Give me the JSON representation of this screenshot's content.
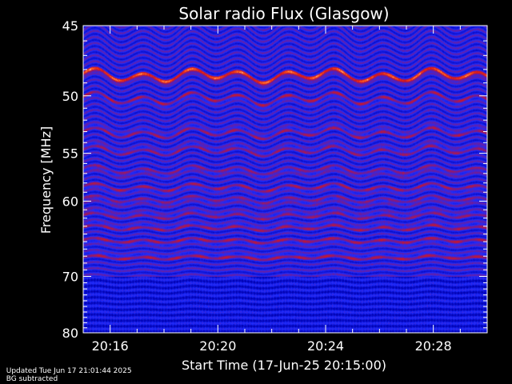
{
  "chart_data": {
    "type": "heatmap",
    "title": "Solar radio Flux (Glasgow)",
    "ylabel": "Frequency [MHz]",
    "xlabel": "Start Time (17-Jun-25 20:15:00)",
    "y_scale": "reciprocal",
    "ylim": [
      45,
      80
    ],
    "y_ticks": [
      45,
      50,
      55,
      60,
      70,
      80
    ],
    "xlim": [
      "20:15:00",
      "20:30:00"
    ],
    "x_ticks": [
      "20:16",
      "20:20",
      "20:24",
      "20:28"
    ],
    "colorscale": [
      "#0000b0",
      "#1e2cff",
      "#7a1a8c",
      "#d81818",
      "#ff6020",
      "#ffffff"
    ],
    "interference_bands_mhz": [
      48.5,
      50.3,
      53.0,
      54.6,
      56.8,
      58.6,
      60.0,
      61.5,
      63.0,
      65.0,
      67.0
    ],
    "strong_band_mhz": 48.5,
    "background": "BG subtracted"
  },
  "footer": {
    "updated": "Updated Tue Jun 17 21:01:44 2025",
    "note": "BG subtracted"
  }
}
